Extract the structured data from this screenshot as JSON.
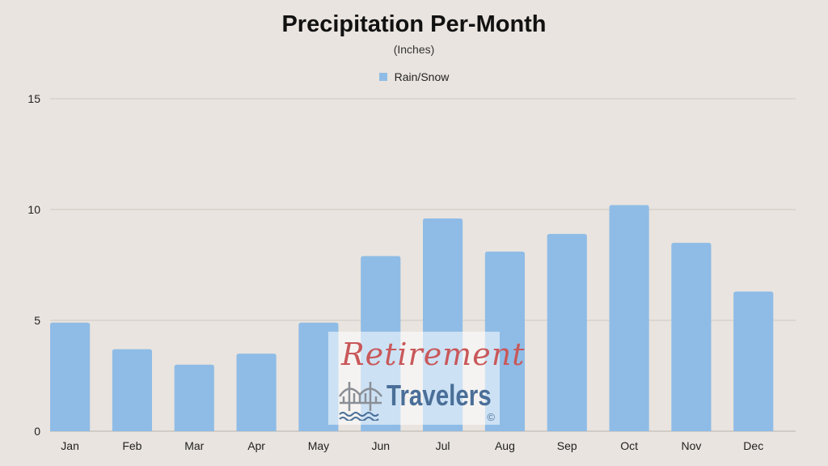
{
  "chart_data": {
    "type": "bar",
    "title": "Precipitation Per-Month",
    "subtitle": "(Inches)",
    "xlabel": "",
    "ylabel": "",
    "categories": [
      "Jan",
      "Feb",
      "Mar",
      "Apr",
      "May",
      "Jun",
      "Jul",
      "Aug",
      "Sep",
      "Oct",
      "Nov",
      "Dec"
    ],
    "series": [
      {
        "name": "Rain/Snow",
        "values": [
          4.9,
          3.7,
          3.0,
          3.5,
          4.9,
          7.9,
          9.6,
          8.1,
          8.9,
          10.2,
          8.5,
          6.3
        ]
      }
    ],
    "ylim": [
      0,
      15
    ],
    "yticks": [
      0,
      5,
      10,
      15
    ],
    "grid": true,
    "legend_position": "top-center",
    "colors": {
      "bar": "#8fbce6",
      "grid": "#cfc9c3",
      "background": "#e9e4df"
    }
  },
  "watermark": {
    "line1": "Retirement",
    "line2": "Travelers",
    "copyright": "©"
  }
}
